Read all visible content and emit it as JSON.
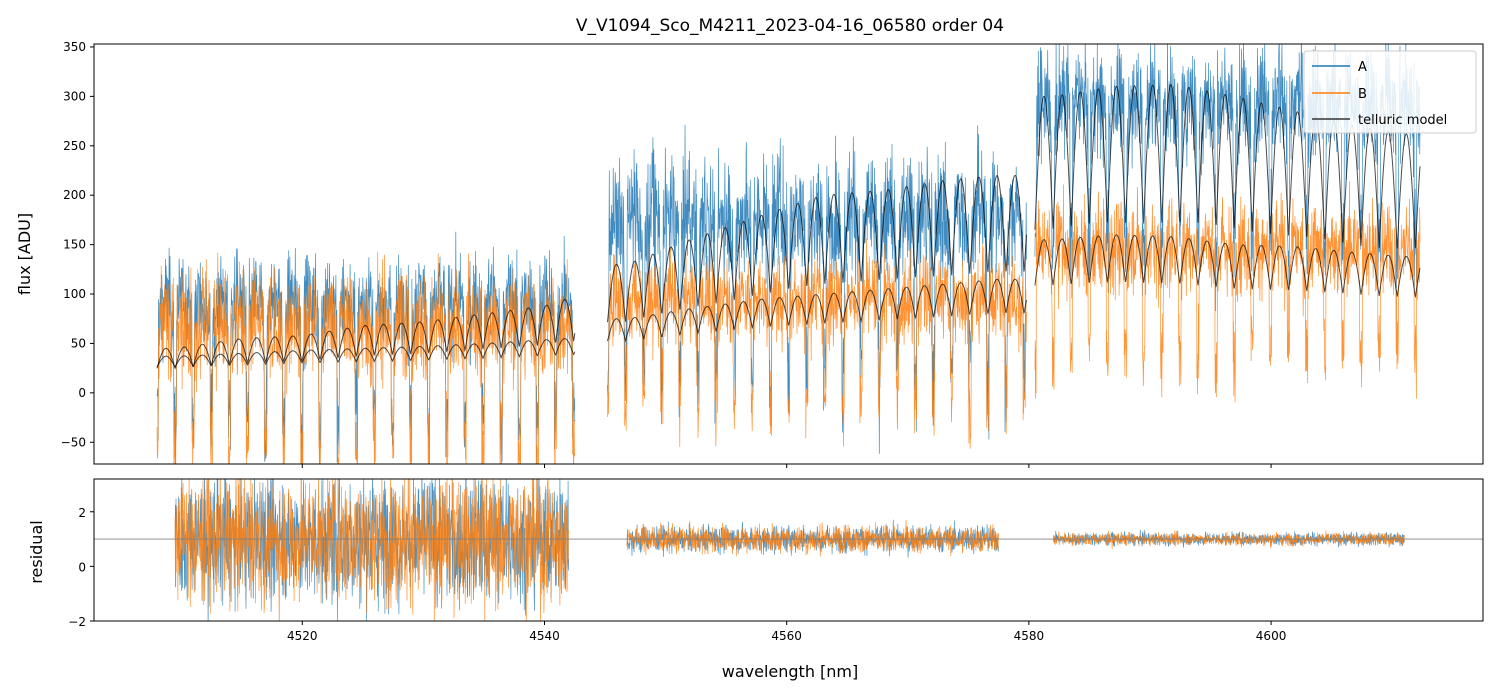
{
  "chart_data": {
    "type": "line",
    "title": "V_V1094_Sco_M4211_2023-04-16_06580  order 04",
    "xlabel": "wavelength [nm]",
    "colors": {
      "A": "#1f77b4",
      "B": "#ff7f0e",
      "telluric": "#000000",
      "ref": "#808080"
    },
    "legend": {
      "placement": "top-right",
      "entries": [
        "A",
        "B",
        "telluric model"
      ]
    },
    "x_ticks": [
      4520,
      4540,
      4560,
      4580,
      4600
    ],
    "xlim": [
      4502.8,
      4617.5
    ],
    "panels": [
      {
        "name": "flux",
        "ylabel": "flux [ADU]",
        "ylim": [
          -72,
          353
        ],
        "y_ticks": [
          -50,
          0,
          50,
          100,
          150,
          200,
          250,
          300,
          350
        ],
        "segments": [
          {
            "x_start": 4508.0,
            "x_end": 4542.5,
            "A_level": 70,
            "A_amp": 75,
            "B_level": 50,
            "B_amp": 80,
            "model_A": [
              [
                4509.5,
                45
              ],
              [
                4515,
                55
              ],
              [
                4520,
                58
              ],
              [
                4525,
                68
              ],
              [
                4530,
                72
              ],
              [
                4535,
                80
              ],
              [
                4540,
                88
              ],
              [
                4541.8,
                95
              ]
            ],
            "model_B": [
              [
                4509.5,
                37
              ],
              [
                4515,
                40
              ],
              [
                4520,
                43
              ],
              [
                4525,
                45
              ],
              [
                4530,
                47
              ],
              [
                4535,
                50
              ],
              [
                4541.8,
                55
              ]
            ]
          },
          {
            "x_start": 4545.2,
            "x_end": 4579.8,
            "A_level": 150,
            "A_amp": 100,
            "B_level": 80,
            "B_amp": 65,
            "model_A": [
              [
                4546.8,
                130
              ],
              [
                4552,
                155
              ],
              [
                4558,
                180
              ],
              [
                4563,
                200
              ],
              [
                4568,
                205
              ],
              [
                4573,
                215
              ],
              [
                4577.5,
                220
              ]
            ],
            "model_B": [
              [
                4546.8,
                75
              ],
              [
                4552,
                85
              ],
              [
                4558,
                95
              ],
              [
                4563,
                100
              ],
              [
                4568,
                105
              ],
              [
                4573,
                110
              ],
              [
                4577.5,
                115
              ]
            ]
          },
          {
            "x_start": 4580.5,
            "x_end": 4612.3,
            "A_level": 270,
            "A_amp": 90,
            "B_level": 130,
            "B_amp": 70,
            "model_A": [
              [
                4582,
                300
              ],
              [
                4587,
                310
              ],
              [
                4592,
                312
              ],
              [
                4597,
                300
              ],
              [
                4602,
                285
              ],
              [
                4607,
                270
              ],
              [
                4611,
                262
              ]
            ],
            "model_B": [
              [
                4582,
                155
              ],
              [
                4587,
                160
              ],
              [
                4592,
                158
              ],
              [
                4597,
                150
              ],
              [
                4602,
                148
              ],
              [
                4607,
                142
              ],
              [
                4611,
                138
              ]
            ]
          }
        ]
      },
      {
        "name": "residual",
        "ylabel": "residual",
        "ylim": [
          -2,
          3.2
        ],
        "y_ticks": [
          -2,
          0,
          2
        ],
        "reference_line": 1,
        "segments": [
          {
            "x_start": 4509.5,
            "x_end": 4542.0,
            "spread": 2.8
          },
          {
            "x_start": 4546.8,
            "x_end": 4577.5,
            "spread": 0.6
          },
          {
            "x_start": 4582.0,
            "x_end": 4611.0,
            "spread": 0.28
          }
        ]
      }
    ]
  }
}
